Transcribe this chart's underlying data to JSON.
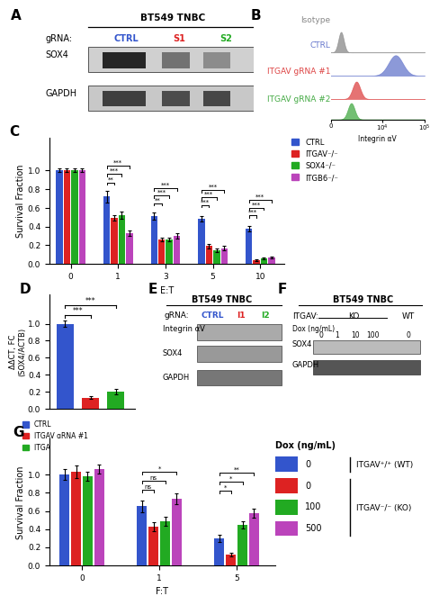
{
  "panel_C": {
    "group_labels": [
      "0",
      "1",
      "3",
      "5",
      "10"
    ],
    "bars": {
      "CTRL": [
        1.0,
        0.72,
        0.51,
        0.48,
        0.38
      ],
      "ITGAV": [
        1.0,
        0.49,
        0.26,
        0.19,
        0.04
      ],
      "SOX4": [
        1.0,
        0.52,
        0.26,
        0.15,
        0.06
      ],
      "ITGB6": [
        1.0,
        0.33,
        0.3,
        0.17,
        0.07
      ]
    },
    "errors": {
      "CTRL": [
        0.02,
        0.06,
        0.04,
        0.03,
        0.03
      ],
      "ITGAV": [
        0.02,
        0.03,
        0.02,
        0.02,
        0.01
      ],
      "SOX4": [
        0.02,
        0.04,
        0.02,
        0.02,
        0.01
      ],
      "ITGB6": [
        0.02,
        0.03,
        0.03,
        0.02,
        0.01
      ]
    },
    "colors": {
      "CTRL": "#3355CC",
      "ITGAV": "#DD2222",
      "SOX4": "#22AA22",
      "ITGB6": "#BB44BB"
    },
    "sig_ET1": [
      "**",
      "***",
      "***"
    ],
    "sig_ET3": [
      "**",
      "***",
      "***"
    ],
    "sig_ET5": [
      "***",
      "***",
      "***"
    ],
    "sig_ET10": [
      "***",
      "***",
      "***"
    ],
    "ylabel": "Survival Fraction",
    "xlabel": "E:T"
  },
  "panel_D": {
    "values": [
      1.0,
      0.13,
      0.2
    ],
    "errors": [
      0.04,
      0.02,
      0.03
    ],
    "colors": [
      "#3355CC",
      "#DD2222",
      "#22AA22"
    ],
    "legend": [
      "CTRL",
      "ITGAV gRNA #1",
      "ITGAV gRNA #2"
    ],
    "ylabel": "ΔΔCT, FC\n(SOX4/ACTB)"
  },
  "panel_G": {
    "group_labels": [
      "0",
      "1",
      "5"
    ],
    "bars": {
      "blue": [
        1.0,
        0.65,
        0.3
      ],
      "red": [
        1.03,
        0.43,
        0.12
      ],
      "green": [
        0.98,
        0.49,
        0.45
      ],
      "purple": [
        1.06,
        0.73,
        0.58
      ]
    },
    "errors": {
      "blue": [
        0.06,
        0.06,
        0.04
      ],
      "red": [
        0.07,
        0.05,
        0.02
      ],
      "green": [
        0.05,
        0.05,
        0.04
      ],
      "purple": [
        0.05,
        0.06,
        0.05
      ]
    },
    "colors": {
      "blue": "#3355CC",
      "red": "#DD2222",
      "green": "#22AA22",
      "purple": "#BB44BB"
    },
    "ylabel": "Survival Fraction",
    "xlabel": "F:T",
    "legend_dox": [
      "0",
      "0",
      "100",
      "500"
    ],
    "legend_wt_ko": [
      "ITGAV⁺/⁺ (WT)",
      "ITGAV⁻/⁻ (KO)"
    ]
  },
  "panel_A": {
    "title": "BT549 TNBC",
    "grna_label": "gRNA:",
    "grna_names": [
      "CTRL",
      "S1",
      "S2"
    ],
    "grna_colors": [
      "#3355CC",
      "#DD2222",
      "#22AA22"
    ],
    "blot_labels": [
      "SOX4",
      "GAPDH"
    ],
    "bg_colors": [
      "#DDDDDD",
      "#CCCCCC"
    ]
  },
  "panel_B": {
    "labels": [
      "Isotype",
      "CTRL",
      "ITGAV gRNA #1",
      "ITGAV gRNA #2"
    ],
    "colors": [
      "#888888",
      "#6677CC",
      "#DD4444",
      "#44AA44"
    ],
    "xlabel": "Integrin αV"
  },
  "panel_E": {
    "title": "BT549 TNBC",
    "grna_label": "gRNA:",
    "grna_names": [
      "CTRL",
      "I1",
      "I2"
    ],
    "grna_colors": [
      "#3355CC",
      "#DD2222",
      "#22AA22"
    ],
    "blot_labels": [
      "Integrin αV",
      "SOX4",
      "GAPDH"
    ]
  },
  "panel_F": {
    "title": "BT549 TNBC",
    "itgav_label": "ITGAV:",
    "ko_wt": [
      "KO",
      "WT"
    ],
    "dox_label": "Dox (ng/mL)",
    "dox_vals": [
      "0",
      "1",
      "10",
      "100",
      "0"
    ],
    "blot_labels": [
      "SOX4",
      "GAPDH"
    ]
  }
}
